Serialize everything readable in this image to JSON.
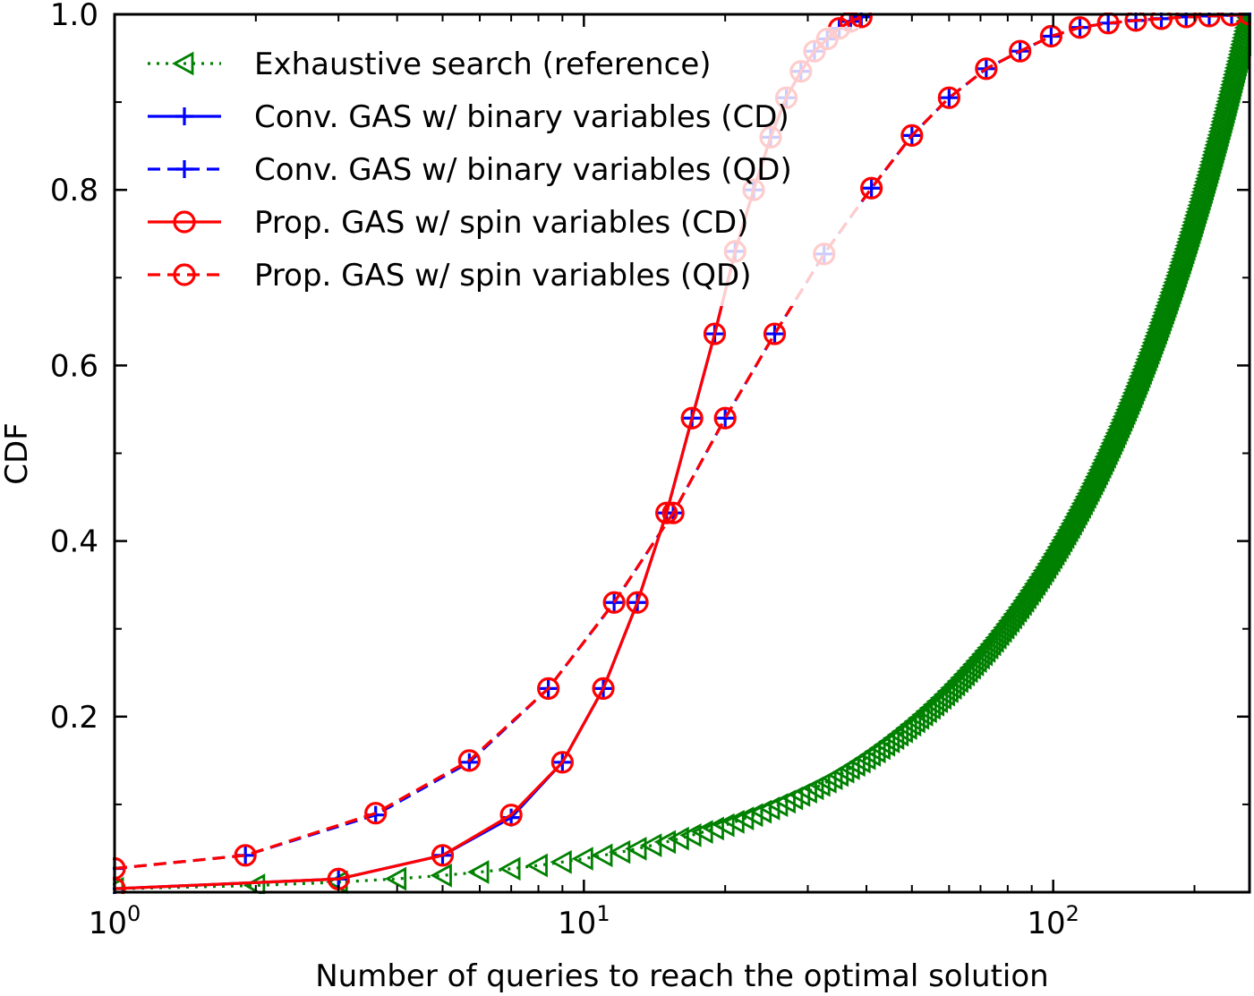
{
  "chart_data": {
    "type": "line",
    "xscale": "log",
    "xlim": [
      1,
      262
    ],
    "ylim": [
      0.0,
      1.0
    ],
    "xlabel": "Number of queries to reach the optimal solution",
    "ylabel": "CDF",
    "x_ticks": [
      {
        "value": 1,
        "base": "10",
        "exp": "0"
      },
      {
        "value": 10,
        "base": "10",
        "exp": "1"
      },
      {
        "value": 100,
        "base": "10",
        "exp": "2"
      }
    ],
    "y_ticks": [
      {
        "value": 0.2,
        "label": "0.2"
      },
      {
        "value": 0.4,
        "label": "0.4"
      },
      {
        "value": 0.6,
        "label": "0.6"
      },
      {
        "value": 0.8,
        "label": "0.8"
      },
      {
        "value": 1.0,
        "label": "1.0"
      }
    ],
    "grid": false,
    "legend_position": "top-left",
    "series": [
      {
        "name": "Exhaustive search (reference)",
        "color": "#008000",
        "dash": "dotted",
        "marker": "triangle-left",
        "x_start": 1,
        "x_end": 262,
        "x_step": 1,
        "y_rule": "CDF = n/262 (uniform)"
      },
      {
        "name": "Conv. GAS w/ binary variables (CD)",
        "color": "#0000ff",
        "dash": "solid",
        "marker": "plus",
        "x": [
          1,
          3,
          5,
          7,
          9,
          11,
          13,
          15,
          17,
          19,
          21,
          23,
          25,
          27,
          29,
          31,
          33,
          35,
          37,
          39
        ],
        "y": [
          0.004,
          0.015,
          0.042,
          0.085,
          0.148,
          0.232,
          0.33,
          0.432,
          0.54,
          0.636,
          0.73,
          0.8,
          0.86,
          0.905,
          0.935,
          0.958,
          0.972,
          0.984,
          0.992,
          0.997
        ]
      },
      {
        "name": "Conv. GAS w/ binary variables (QD)",
        "color": "#0000ff",
        "dash": "dashed",
        "marker": "plus",
        "x": [
          1,
          1.9,
          3.6,
          5.7,
          8.4,
          11.6,
          15.5,
          20,
          25.5,
          32.5,
          41,
          50,
          60,
          72,
          85,
          99,
          114,
          131,
          150,
          170,
          192,
          215,
          240,
          262
        ],
        "y": [
          0.027,
          0.042,
          0.088,
          0.148,
          0.232,
          0.33,
          0.432,
          0.54,
          0.636,
          0.727,
          0.802,
          0.862,
          0.905,
          0.938,
          0.958,
          0.975,
          0.985,
          0.99,
          0.993,
          0.995,
          0.997,
          0.998,
          0.999,
          1.0
        ]
      },
      {
        "name": "Prop. GAS w/ spin variables (CD)",
        "color": "#ff0000",
        "dash": "solid",
        "marker": "circle",
        "x": [
          1,
          3,
          5,
          7,
          9,
          11,
          13,
          15,
          17,
          19,
          21,
          23,
          25,
          27,
          29,
          31,
          33,
          35,
          37,
          39
        ],
        "y": [
          0.004,
          0.015,
          0.042,
          0.088,
          0.148,
          0.232,
          0.33,
          0.432,
          0.54,
          0.636,
          0.73,
          0.8,
          0.86,
          0.905,
          0.935,
          0.958,
          0.972,
          0.984,
          0.992,
          0.997
        ]
      },
      {
        "name": "Prop. GAS w/ spin variables (QD)",
        "color": "#ff0000",
        "dash": "dashed",
        "marker": "circle",
        "x": [
          1,
          1.9,
          3.6,
          5.7,
          8.4,
          11.6,
          15.5,
          20,
          25.5,
          32.5,
          41,
          50,
          60,
          72,
          85,
          99,
          114,
          131,
          150,
          170,
          192,
          215,
          240,
          262
        ],
        "y": [
          0.027,
          0.042,
          0.09,
          0.15,
          0.232,
          0.33,
          0.432,
          0.54,
          0.636,
          0.727,
          0.802,
          0.862,
          0.905,
          0.938,
          0.958,
          0.975,
          0.985,
          0.99,
          0.993,
          0.995,
          0.997,
          0.998,
          0.999,
          1.0
        ]
      }
    ]
  }
}
